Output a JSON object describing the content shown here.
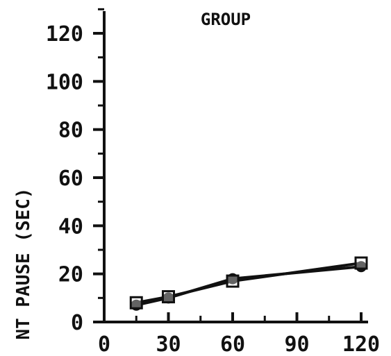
{
  "chart_data": {
    "type": "line",
    "title": "GROUP",
    "ylabel": "NT PAUSE (SEC)",
    "xlabel": "",
    "xlim": [
      0,
      120
    ],
    "ylim": [
      0,
      120
    ],
    "x_ticks": [
      "0",
      "30",
      "60",
      "90",
      "120"
    ],
    "y_ticks": [
      "0",
      "20",
      "40",
      "60",
      "80",
      "100",
      "120"
    ],
    "grid": false,
    "series": [
      {
        "marker": "filled-circle",
        "x": [
          15,
          30,
          60,
          120
        ],
        "y": [
          7,
          10,
          18,
          23
        ]
      },
      {
        "marker": "open-square",
        "x": [
          15,
          30,
          60,
          120
        ],
        "y": [
          8,
          10.5,
          17,
          24.5
        ]
      }
    ],
    "colors": {
      "ink": "#111111"
    }
  }
}
